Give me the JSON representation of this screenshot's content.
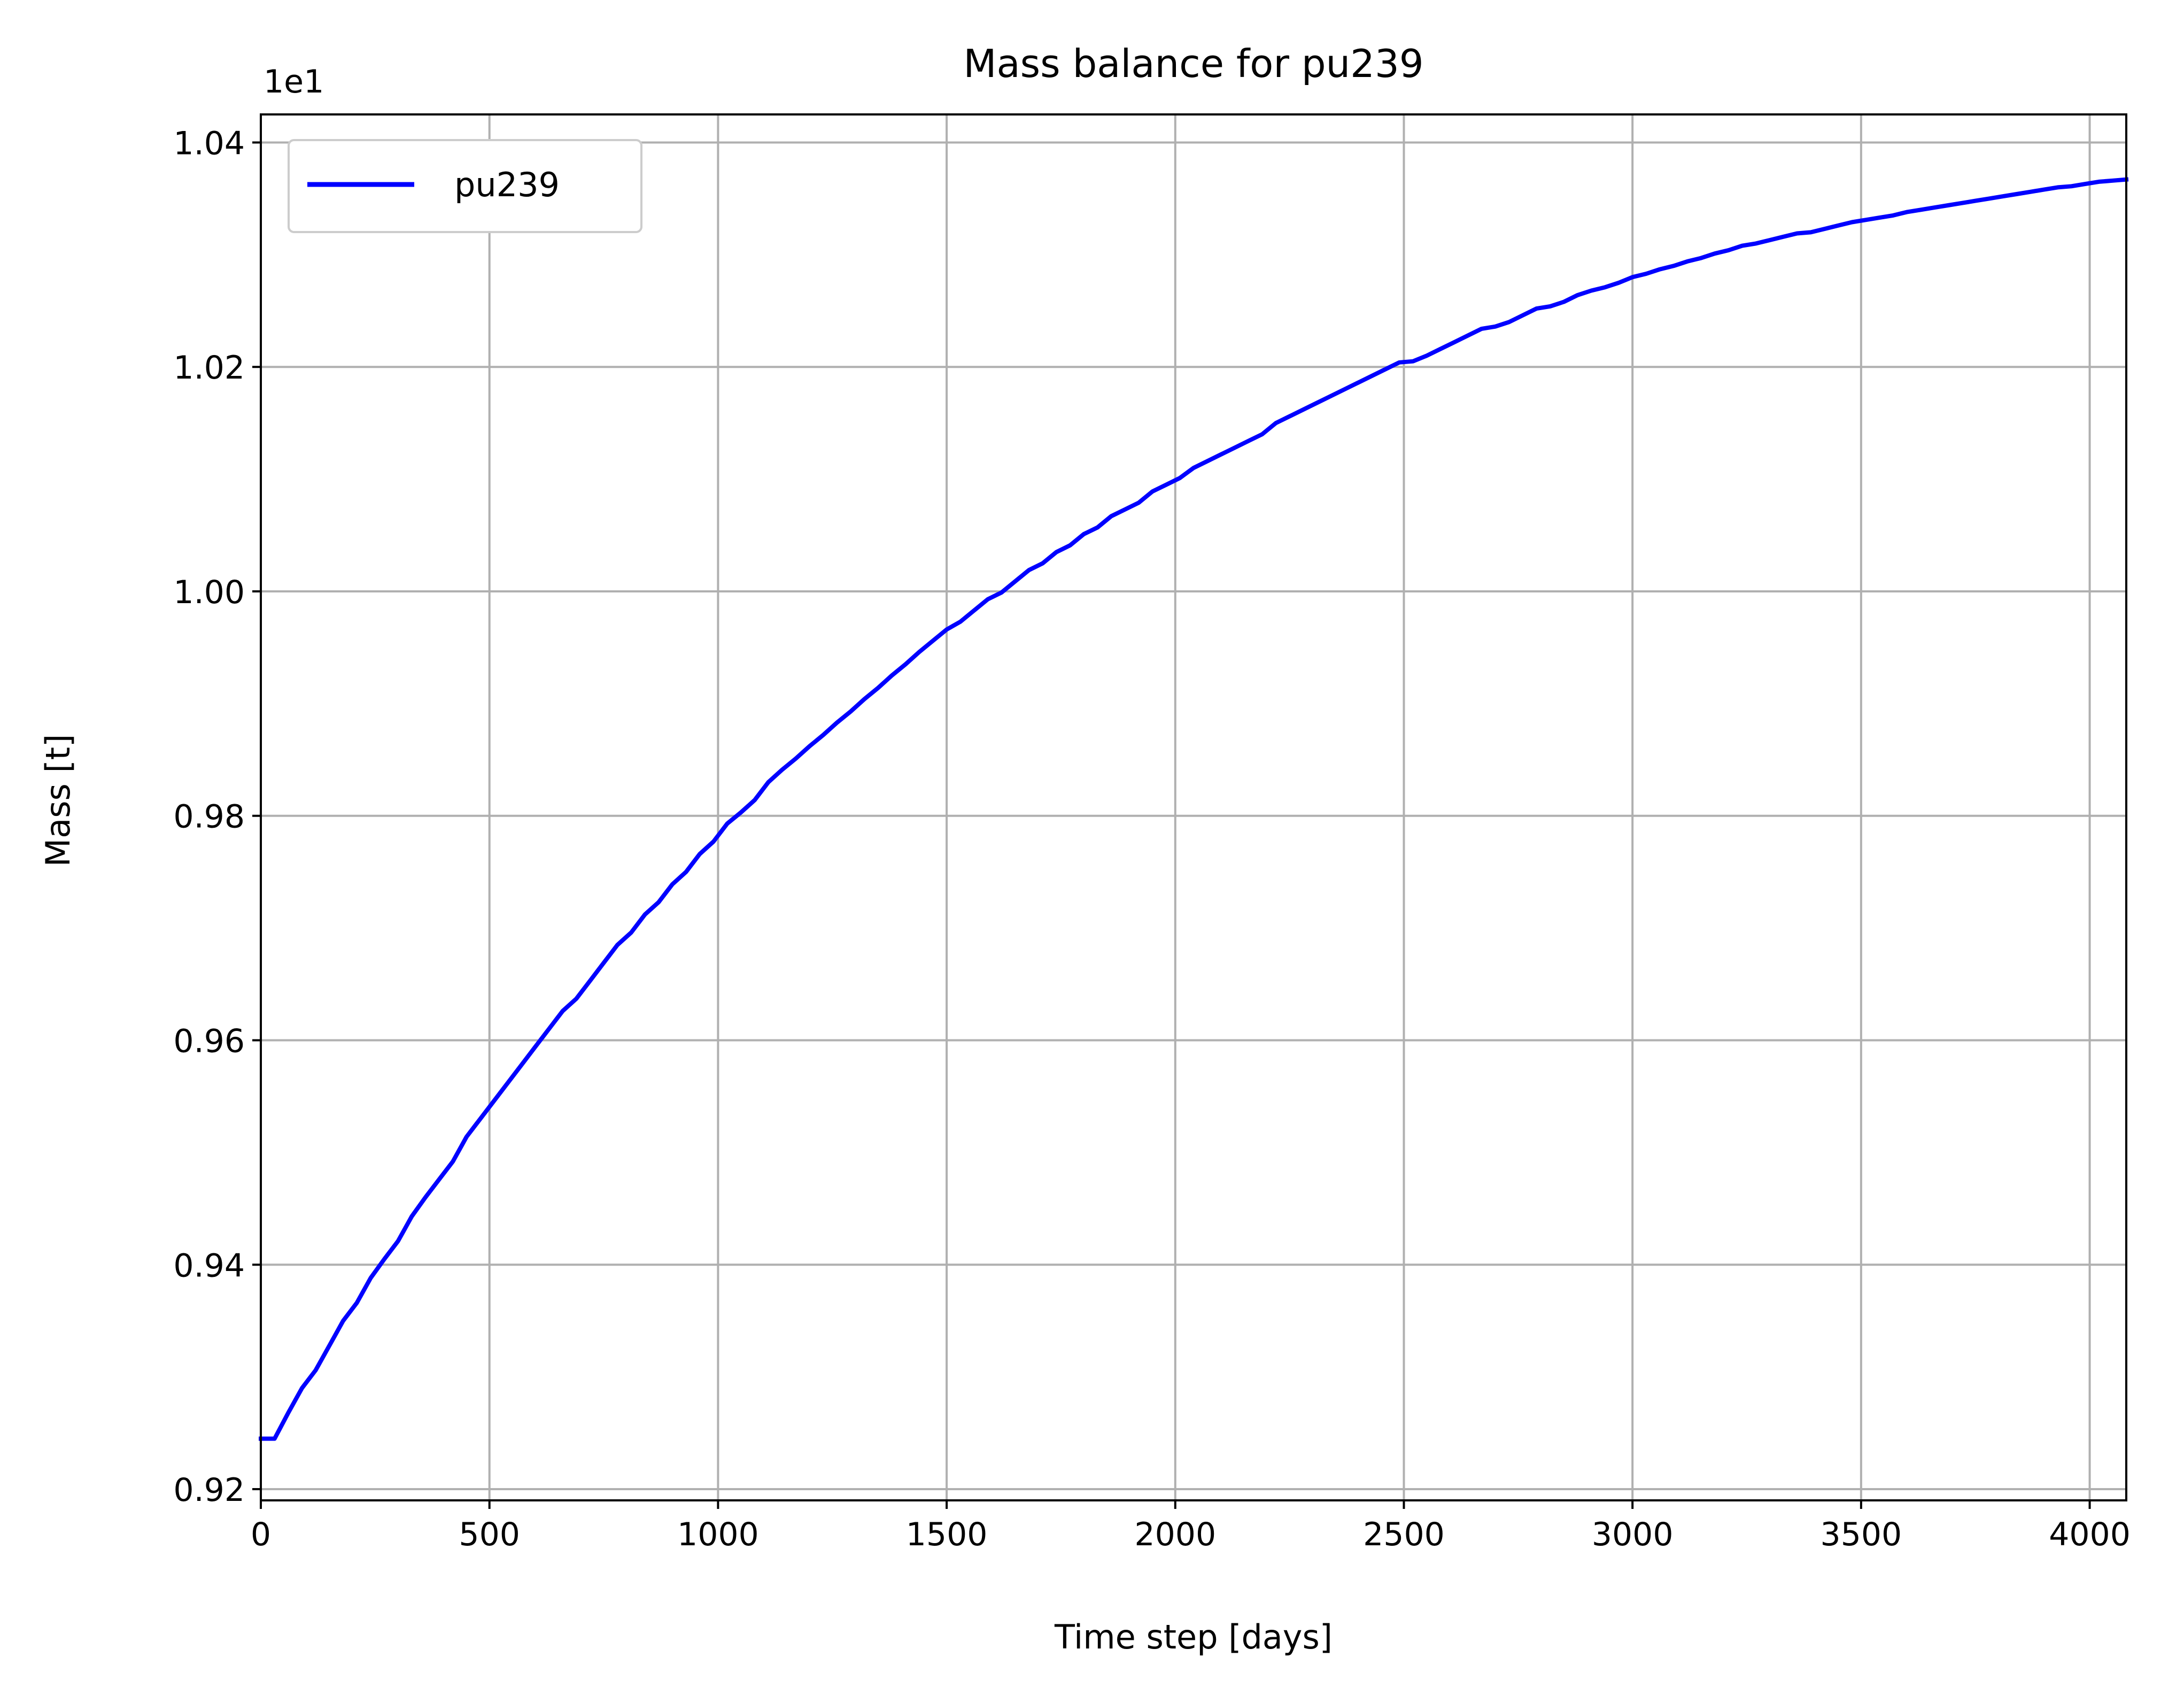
{
  "colors": {
    "line": "#0000ff",
    "grid": "#b0b0b0",
    "axes": "#000000",
    "background": "#ffffff"
  },
  "chart_data": {
    "type": "line",
    "title": "Mass balance for pu239",
    "xlabel": "Time step [days]",
    "ylabel": "Mass [t]",
    "y_offset_label": "1e1",
    "xlim": [
      0,
      4080
    ],
    "ylim": [
      0.919,
      1.0425
    ],
    "xticks": [
      0,
      500,
      1000,
      1500,
      2000,
      2500,
      3000,
      3500,
      4000
    ],
    "xtick_labels": [
      "0",
      "500",
      "1000",
      "1500",
      "2000",
      "2500",
      "3000",
      "3500",
      "4000"
    ],
    "yticks": [
      0.92,
      0.94,
      0.96,
      0.98,
      1.0,
      1.02,
      1.04
    ],
    "ytick_labels": [
      "0.92",
      "0.94",
      "0.96",
      "0.98",
      "1.00",
      "1.02",
      "1.04"
    ],
    "grid": true,
    "legend_position": "top-left",
    "series": [
      {
        "name": "pu239",
        "x": [
          0,
          30,
          60,
          90,
          120,
          150,
          180,
          210,
          240,
          270,
          300,
          330,
          360,
          390,
          420,
          450,
          480,
          510,
          540,
          570,
          600,
          630,
          660,
          690,
          720,
          750,
          780,
          810,
          840,
          870,
          900,
          930,
          960,
          990,
          1020,
          1050,
          1080,
          1110,
          1140,
          1170,
          1200,
          1230,
          1260,
          1290,
          1320,
          1350,
          1380,
          1410,
          1440,
          1470,
          1500,
          1530,
          1560,
          1590,
          1620,
          1650,
          1680,
          1710,
          1740,
          1770,
          1800,
          1830,
          1860,
          1890,
          1920,
          1950,
          1980,
          2010,
          2040,
          2070,
          2100,
          2130,
          2160,
          2190,
          2220,
          2250,
          2280,
          2310,
          2340,
          2370,
          2400,
          2430,
          2460,
          2490,
          2520,
          2550,
          2580,
          2610,
          2640,
          2670,
          2700,
          2730,
          2760,
          2790,
          2820,
          2850,
          2880,
          2910,
          2940,
          2970,
          3000,
          3030,
          3060,
          3090,
          3120,
          3150,
          3180,
          3210,
          3240,
          3270,
          3300,
          3330,
          3360,
          3390,
          3420,
          3450,
          3480,
          3510,
          3540,
          3570,
          3600,
          3630,
          3660,
          3690,
          3720,
          3750,
          3780,
          3810,
          3840,
          3870,
          3900,
          3930,
          3960,
          3990,
          4020,
          4050,
          4080
        ],
        "values": [
          0.9245,
          0.9245,
          0.9268,
          0.929,
          0.9306,
          0.9328,
          0.935,
          0.9366,
          0.9388,
          0.9405,
          0.9421,
          0.9443,
          0.946,
          0.9476,
          0.9492,
          0.9514,
          0.953,
          0.9546,
          0.9562,
          0.9578,
          0.9594,
          0.961,
          0.9626,
          0.9637,
          0.9653,
          0.9669,
          0.9685,
          0.9696,
          0.9712,
          0.9723,
          0.9739,
          0.975,
          0.9766,
          0.9777,
          0.9793,
          0.9803,
          0.9814,
          0.983,
          0.9841,
          0.9851,
          0.9862,
          0.9872,
          0.9883,
          0.9893,
          0.9904,
          0.9914,
          0.9925,
          0.9935,
          0.9946,
          0.9956,
          0.9966,
          0.9973,
          0.9983,
          0.9993,
          0.9999,
          1.0009,
          1.0019,
          1.0025,
          1.0035,
          1.0041,
          1.0051,
          1.0057,
          1.0067,
          1.0073,
          1.0079,
          1.0089,
          1.0095,
          1.0101,
          1.011,
          1.0116,
          1.0122,
          1.0128,
          1.0134,
          1.014,
          1.015,
          1.0156,
          1.0162,
          1.0168,
          1.0174,
          1.018,
          1.0186,
          1.0192,
          1.0198,
          1.0204,
          1.0205,
          1.021,
          1.0216,
          1.0222,
          1.0228,
          1.0234,
          1.0236,
          1.024,
          1.0246,
          1.0252,
          1.0254,
          1.0258,
          1.0264,
          1.0268,
          1.0271,
          1.0275,
          1.028,
          1.0283,
          1.0287,
          1.029,
          1.0294,
          1.0297,
          1.0301,
          1.0304,
          1.0308,
          1.031,
          1.0313,
          1.0316,
          1.0319,
          1.032,
          1.0323,
          1.0326,
          1.0329,
          1.0331,
          1.0333,
          1.0335,
          1.0338,
          1.034,
          1.0342,
          1.0344,
          1.0346,
          1.0348,
          1.035,
          1.0352,
          1.0354,
          1.0356,
          1.0358,
          1.036,
          1.0361,
          1.0363,
          1.0365,
          1.0366,
          1.0367
        ]
      }
    ]
  }
}
